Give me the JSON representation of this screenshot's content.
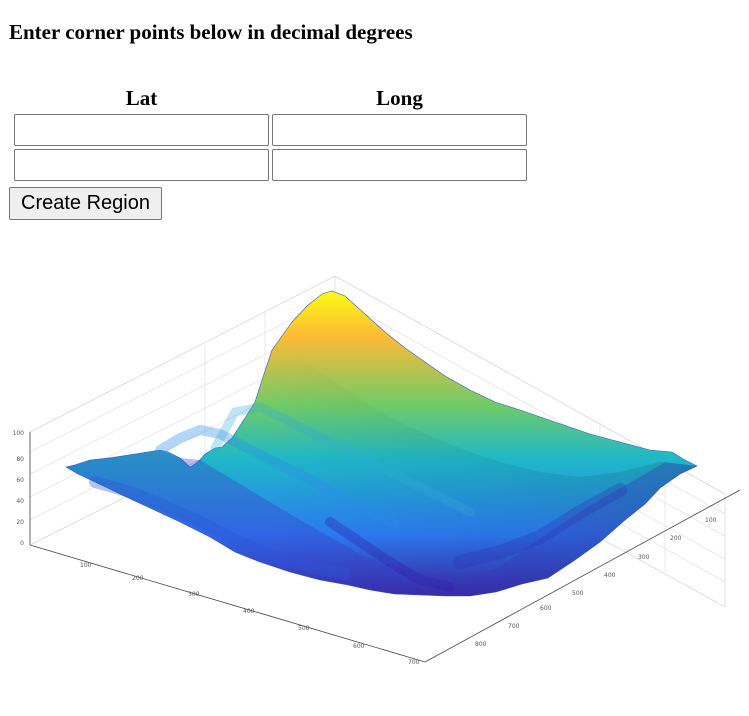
{
  "form": {
    "heading": "Enter corner points below in decimal degrees",
    "col_lat": "Lat",
    "col_long": "Long",
    "button_label": "Create Region",
    "rows": [
      {
        "lat_value": "",
        "long_value": ""
      },
      {
        "lat_value": "",
        "long_value": ""
      }
    ]
  },
  "surface_plot": {
    "z_ticks": [
      "0",
      "20",
      "40",
      "60",
      "80",
      "100"
    ],
    "x_ticks": [
      "100",
      "200",
      "300",
      "400",
      "500",
      "600",
      "700"
    ],
    "y_ticks": [
      "100",
      "200",
      "300",
      "400",
      "500",
      "600",
      "700",
      "800"
    ],
    "colormap": [
      "#3e26a8",
      "#2c7bf4",
      "#1fb8c8",
      "#6dcb6a",
      "#fdbb35",
      "#f9fb14"
    ]
  }
}
